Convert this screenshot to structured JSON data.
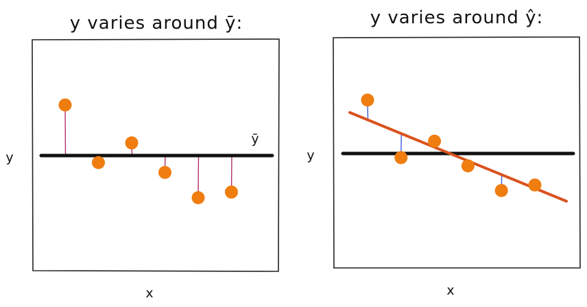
{
  "panels": [
    {
      "title": "y varies around ȳ:",
      "y_label": "y",
      "x_label": "x",
      "mean_label": "ȳ",
      "residuals_to": "mean",
      "points": [
        {
          "x": 1,
          "y": 1.8
        },
        {
          "x": 2,
          "y": -0.25
        },
        {
          "x": 3,
          "y": 0.45
        },
        {
          "x": 4,
          "y": -0.6
        },
        {
          "x": 5,
          "y": -1.5
        },
        {
          "x": 6,
          "y": -1.3
        }
      ],
      "mean_y": 0
    },
    {
      "title": "y varies around ŷ:",
      "y_label": "y",
      "x_label": "x",
      "residuals_to": "regression-line",
      "points": [
        {
          "x": 1,
          "y": 1.95
        },
        {
          "x": 2,
          "y": -0.15
        },
        {
          "x": 3,
          "y": 0.45
        },
        {
          "x": 4,
          "y": -0.45
        },
        {
          "x": 5,
          "y": -1.35
        },
        {
          "x": 6,
          "y": -1.15
        }
      ],
      "mean_y": 0,
      "regression": {
        "intercept": 1.73,
        "slope": -0.5
      }
    }
  ],
  "colors": {
    "point": "#ef7d10",
    "mean_line": "#111111",
    "regression_line": "#d9531e",
    "residual_to_mean": "#b0306a",
    "residual_to_regression": "#3a5bd6",
    "frame": "#222222"
  }
}
